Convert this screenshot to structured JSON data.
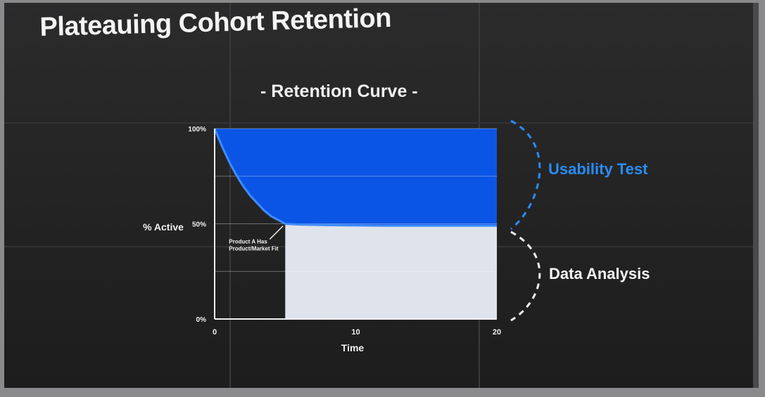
{
  "slide": {
    "title": "Plateauing Cohort Retention",
    "subtitle": "- Retention Curve -",
    "upper_label": "Usability Test",
    "lower_label": "Data Analysis",
    "colors": {
      "retained_fill": "#dfe3ec",
      "churn_fill": "#0b55e6",
      "upper_label_color": "#2a8cf5",
      "lower_label_color": "#f4f4f4"
    }
  },
  "chart_data": {
    "type": "area",
    "xlabel": "Time",
    "ylabel": "% Active",
    "x_ticks": [
      "0",
      "10",
      "20"
    ],
    "y_ticks": [
      "100%",
      "50%",
      "0%"
    ],
    "xlim": [
      0,
      20
    ],
    "ylim": [
      0,
      100
    ],
    "series": [
      {
        "x": [
          0,
          0.5,
          1,
          1.5,
          2,
          2.5,
          3,
          3.5,
          4,
          4.5,
          5,
          6,
          8,
          10,
          12,
          14,
          16,
          18,
          20
        ],
        "values": [
          100,
          91,
          83,
          76,
          70,
          65,
          61,
          57,
          54,
          52,
          50,
          49.6,
          49.3,
          49.1,
          49,
          49,
          49,
          49,
          49
        ]
      }
    ],
    "annotation": {
      "text": "Product A Has Product/Market Fit",
      "x": 5,
      "y": 50
    }
  }
}
